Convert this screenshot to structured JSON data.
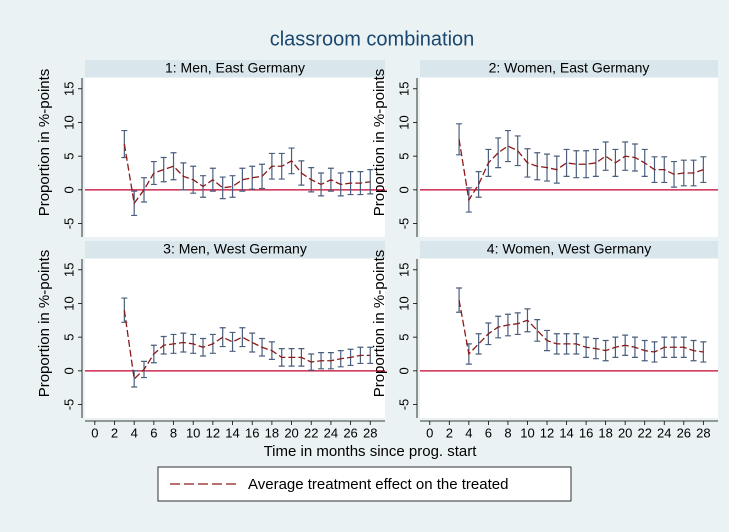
{
  "title": "classroom combination",
  "xlabel": "Time in months since prog. start",
  "chart_data": [
    {
      "type": "line",
      "title": "1: Men, East Germany",
      "ylabel": "Proportion in %-points",
      "x": [
        3,
        4,
        5,
        6,
        7,
        8,
        9,
        10,
        11,
        12,
        13,
        14,
        15,
        16,
        17,
        18,
        19,
        20,
        21,
        22,
        23,
        24,
        25,
        26,
        27,
        28
      ],
      "series": [
        {
          "name": "Average treatment effect on the treated",
          "color": "#8b1a1a",
          "values": [
            6.8,
            -2,
            0,
            2.5,
            3,
            3.5,
            2,
            1.5,
            0.5,
            1.5,
            0.3,
            0.5,
            1.5,
            1.8,
            2,
            3.5,
            3.5,
            4.3,
            2.5,
            1.5,
            0.8,
            1.5,
            0.8,
            1,
            1,
            1.2
          ],
          "errors": [
            2,
            1.8,
            1.8,
            1.7,
            1.8,
            2,
            2,
            2,
            1.6,
            1.7,
            1.6,
            1.6,
            1.7,
            1.7,
            1.8,
            1.9,
            1.9,
            1.9,
            1.8,
            1.8,
            1.7,
            1.7,
            1.7,
            1.7,
            1.7,
            1.8
          ]
        }
      ],
      "error_color": "#4a5f7d",
      "refline": 0,
      "refline_color": "#c4002f",
      "xlim": [
        -1,
        29.5
      ],
      "ylim": [
        -7,
        16.6
      ],
      "xticks": [
        0,
        2,
        4,
        6,
        8,
        10,
        12,
        14,
        16,
        18,
        20,
        22,
        24,
        26,
        28
      ],
      "yticks": [
        -5,
        0,
        5,
        10,
        15
      ]
    },
    {
      "type": "line",
      "title": "2: Women, East Germany",
      "ylabel": "Proportion in %-points",
      "x": [
        3,
        4,
        5,
        6,
        7,
        8,
        9,
        10,
        11,
        12,
        13,
        14,
        15,
        16,
        17,
        18,
        19,
        20,
        21,
        22,
        23,
        24,
        25,
        26,
        27,
        28
      ],
      "series": [
        {
          "name": "Average treatment effect on the treated",
          "color": "#8b1a1a",
          "values": [
            7.5,
            -1.5,
            0.8,
            4,
            5.5,
            6.5,
            5.8,
            4,
            3.5,
            3.3,
            3,
            4,
            3.8,
            3.8,
            4,
            5,
            4,
            5,
            4.8,
            4,
            3,
            3,
            2.3,
            2.5,
            2.5,
            3
          ],
          "errors": [
            2.3,
            1.8,
            1.9,
            2,
            2.2,
            2.3,
            2.2,
            2.1,
            2,
            2,
            2,
            2,
            2,
            2,
            2,
            2.1,
            2,
            2.1,
            2,
            2,
            1.9,
            1.9,
            1.9,
            1.9,
            1.9,
            1.9
          ]
        }
      ],
      "error_color": "#4a5f7d",
      "refline": 0,
      "refline_color": "#c4002f",
      "xlim": [
        -1,
        29.5
      ],
      "ylim": [
        -7,
        16.6
      ],
      "xticks": [
        0,
        2,
        4,
        6,
        8,
        10,
        12,
        14,
        16,
        18,
        20,
        22,
        24,
        26,
        28
      ],
      "yticks": [
        -5,
        0,
        5,
        10,
        15
      ]
    },
    {
      "type": "line",
      "title": "3: Men, West Germany",
      "ylabel": "Proportion in %-points",
      "x": [
        3,
        4,
        5,
        6,
        7,
        8,
        9,
        10,
        11,
        12,
        13,
        14,
        15,
        16,
        17,
        18,
        19,
        20,
        21,
        22,
        23,
        24,
        25,
        26,
        27,
        28
      ],
      "series": [
        {
          "name": "Average treatment effect on the treated",
          "color": "#8b1a1a",
          "values": [
            9,
            -1.2,
            0.2,
            2.5,
            3.8,
            4,
            4.2,
            4,
            3.5,
            4,
            5,
            4.3,
            5,
            4.2,
            3.5,
            3,
            2,
            2,
            2,
            1.3,
            1.5,
            1.5,
            1.8,
            2,
            2.3,
            2.3
          ],
          "errors": [
            1.8,
            1.2,
            1.2,
            1.3,
            1.3,
            1.4,
            1.4,
            1.4,
            1.3,
            1.4,
            1.4,
            1.4,
            1.4,
            1.4,
            1.3,
            1.3,
            1.3,
            1.3,
            1.3,
            1.2,
            1.2,
            1.2,
            1.2,
            1.2,
            1.2,
            1.2
          ]
        }
      ],
      "error_color": "#4a5f7d",
      "refline": 0,
      "refline_color": "#c4002f",
      "xlim": [
        -1,
        29.5
      ],
      "ylim": [
        -7,
        16.6
      ],
      "xticks": [
        0,
        2,
        4,
        6,
        8,
        10,
        12,
        14,
        16,
        18,
        20,
        22,
        24,
        26,
        28
      ],
      "yticks": [
        -5,
        0,
        5,
        10,
        15
      ]
    },
    {
      "type": "line",
      "title": "4: Women, West Germany",
      "ylabel": "Proportion in %-points",
      "x": [
        3,
        4,
        5,
        6,
        7,
        8,
        9,
        10,
        11,
        12,
        13,
        14,
        15,
        16,
        17,
        18,
        19,
        20,
        21,
        22,
        23,
        24,
        25,
        26,
        27,
        28
      ],
      "series": [
        {
          "name": "Average treatment effect on the treated",
          "color": "#8b1a1a",
          "values": [
            10.5,
            2.5,
            4,
            5.5,
            6.5,
            6.8,
            7,
            7.5,
            6,
            4.5,
            4,
            4,
            4,
            3.5,
            3.3,
            3,
            3.5,
            3.8,
            3.5,
            3,
            2.8,
            3.5,
            3.5,
            3.5,
            3,
            2.8
          ],
          "errors": [
            1.8,
            1.5,
            1.5,
            1.6,
            1.6,
            1.6,
            1.6,
            1.7,
            1.6,
            1.5,
            1.5,
            1.5,
            1.5,
            1.5,
            1.5,
            1.5,
            1.5,
            1.5,
            1.5,
            1.5,
            1.5,
            1.5,
            1.5,
            1.5,
            1.5,
            1.5
          ]
        }
      ],
      "error_color": "#4a5f7d",
      "refline": 0,
      "refline_color": "#c4002f",
      "xlim": [
        -1,
        29.5
      ],
      "ylim": [
        -7,
        16.6
      ],
      "xticks": [
        0,
        2,
        4,
        6,
        8,
        10,
        12,
        14,
        16,
        18,
        20,
        22,
        24,
        26,
        28
      ],
      "yticks": [
        -5,
        0,
        5,
        10,
        15
      ]
    }
  ]
}
